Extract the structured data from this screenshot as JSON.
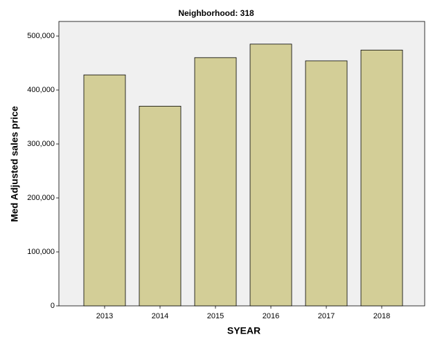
{
  "chart_data": {
    "type": "bar",
    "title": "Neighborhood: 318",
    "x_label": "SYEAR",
    "y_label": "Med Adjusted sales price",
    "categories": [
      "2013",
      "2014",
      "2015",
      "2016",
      "2017",
      "2018"
    ],
    "values": [
      428000,
      370000,
      460000,
      485000,
      454000,
      474000
    ],
    "color": "#d3ce97",
    "ylim": [
      0,
      527000
    ],
    "yticks": [
      0,
      {
        "value": 100000,
        "label": "100,000"
      },
      {
        "value": 200000,
        "label": "200,000"
      },
      {
        "value": 300000,
        "label": "300,000"
      },
      {
        "value": 400000,
        "label": "400,000"
      },
      {
        "value": 500000,
        "label": "500,000"
      }
    ],
    "grid": false
  }
}
